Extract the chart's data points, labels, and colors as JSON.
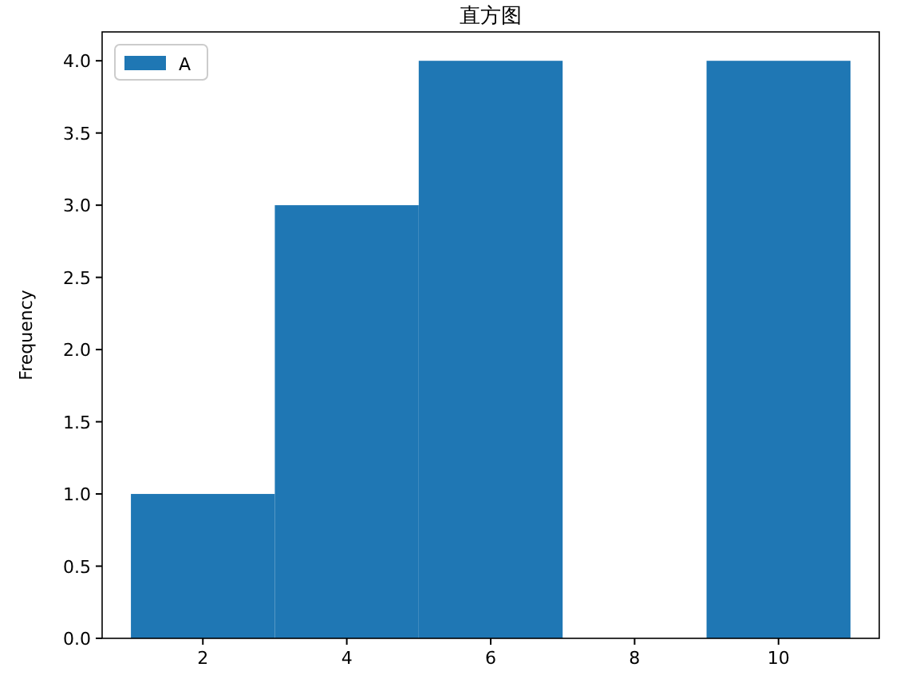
{
  "chart_data": {
    "type": "histogram",
    "title": "直方图",
    "ylabel": "Frequency",
    "bins": [
      1,
      3,
      5,
      7,
      9,
      11
    ],
    "series": [
      {
        "name": "A",
        "color": "#1f77b4",
        "values": [
          1,
          3,
          4,
          0,
          4
        ]
      }
    ],
    "xlim": [
      0.6,
      11.4
    ],
    "xticks": [
      2,
      4,
      6,
      8,
      10
    ],
    "ylim": [
      0,
      4.2
    ],
    "yticks": [
      {
        "value": 0,
        "label": "0.0"
      },
      {
        "value": 0.5,
        "label": "0.5"
      },
      {
        "value": 1,
        "label": "1.0"
      },
      {
        "value": 1.5,
        "label": "1.5"
      },
      {
        "value": 2,
        "label": "2.0"
      },
      {
        "value": 2.5,
        "label": "2.5"
      },
      {
        "value": 3,
        "label": "3.0"
      },
      {
        "value": 3.5,
        "label": "3.5"
      },
      {
        "value": 4,
        "label": "4.0"
      }
    ],
    "legend": "top left",
    "grid": false
  }
}
